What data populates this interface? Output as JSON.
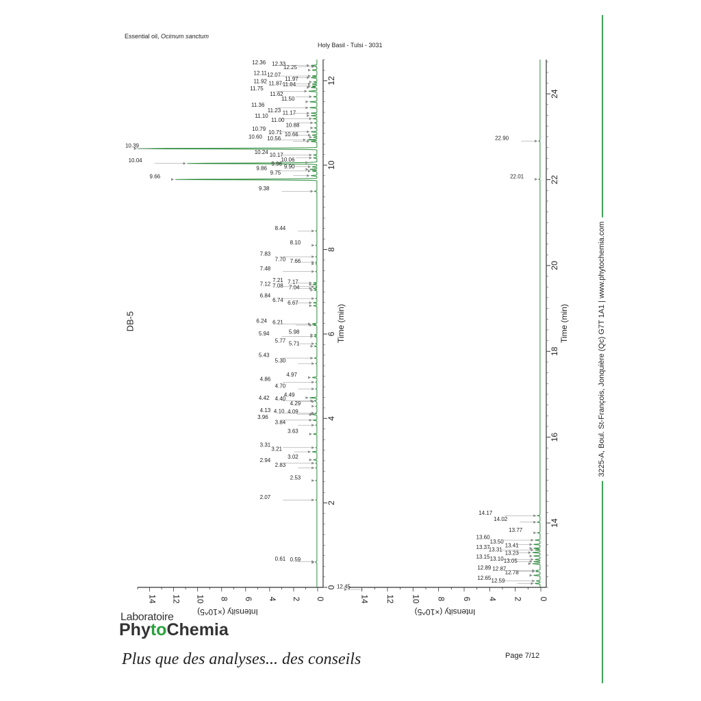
{
  "header": {
    "sample": "Essential oil, ",
    "species": "Ocimum sanctum",
    "title": "Holy Basil - Tulsi - 3031"
  },
  "column_label": "DB-5",
  "footer": {
    "page": "Page 7/12",
    "logo_line1": "Laboratoire",
    "logo_phy": "Phy",
    "logo_to": "to",
    "logo_chemia": "Chemia",
    "tagline": "Plus que des analyses... des conseils",
    "address": "3225-A, Boul. St-François, Jonquière (Qc)  G7T 1A1  |  www.phytochemia.com"
  },
  "colors": {
    "trace": "#2e8b3e",
    "accent": "#3aa655",
    "arrow": "#888888"
  },
  "chart_data": [
    {
      "type": "line",
      "title": "",
      "xlabel": "Time (min)",
      "ylabel": "Intensity (×10^5)",
      "xlim": [
        0,
        12.5
      ],
      "ylim": [
        0,
        15
      ],
      "x_ticks": [
        0,
        2,
        4,
        6,
        8,
        10,
        12
      ],
      "y_ticks": [
        0,
        2,
        4,
        6,
        8,
        10,
        12,
        14
      ],
      "peaks": [
        {
          "rt": 0.59,
          "h": 0.1
        },
        {
          "rt": 0.61,
          "h": 0.1
        },
        {
          "rt": 2.07,
          "h": 0.1
        },
        {
          "rt": 2.53,
          "h": 0.1
        },
        {
          "rt": 2.83,
          "h": 0.1
        },
        {
          "rt": 2.94,
          "h": 0.1
        },
        {
          "rt": 3.02,
          "h": 0.3
        },
        {
          "rt": 3.21,
          "h": 0.4
        },
        {
          "rt": 3.31,
          "h": 0.1
        },
        {
          "rt": 3.63,
          "h": 0.3
        },
        {
          "rt": 3.84,
          "h": 0.1
        },
        {
          "rt": 3.96,
          "h": 0.3
        },
        {
          "rt": 4.09,
          "h": 0.3
        },
        {
          "rt": 4.1,
          "h": 0.2
        },
        {
          "rt": 4.13,
          "h": 0.1
        },
        {
          "rt": 4.29,
          "h": 0.1
        },
        {
          "rt": 4.4,
          "h": 0.1
        },
        {
          "rt": 4.42,
          "h": 0.2
        },
        {
          "rt": 4.49,
          "h": 0.6
        },
        {
          "rt": 4.7,
          "h": 0.1
        },
        {
          "rt": 4.86,
          "h": 0.1
        },
        {
          "rt": 4.97,
          "h": 0.4
        },
        {
          "rt": 5.3,
          "h": 0.1
        },
        {
          "rt": 5.43,
          "h": 0.2
        },
        {
          "rt": 5.71,
          "h": 0.2
        },
        {
          "rt": 5.77,
          "h": 0.1
        },
        {
          "rt": 5.94,
          "h": 0.2
        },
        {
          "rt": 5.98,
          "h": 0.2
        },
        {
          "rt": 6.21,
          "h": 0.3
        },
        {
          "rt": 6.24,
          "h": 0.4
        },
        {
          "rt": 6.67,
          "h": 0.3
        },
        {
          "rt": 6.74,
          "h": 0.3
        },
        {
          "rt": 6.84,
          "h": 0.1
        },
        {
          "rt": 7.04,
          "h": 0.2
        },
        {
          "rt": 7.08,
          "h": 0.3
        },
        {
          "rt": 7.12,
          "h": 0.1
        },
        {
          "rt": 7.17,
          "h": 0.3
        },
        {
          "rt": 7.21,
          "h": 0.3
        },
        {
          "rt": 7.48,
          "h": 0.1
        },
        {
          "rt": 7.66,
          "h": 0.1
        },
        {
          "rt": 7.7,
          "h": 0.1
        },
        {
          "rt": 7.83,
          "h": 0.1
        },
        {
          "rt": 8.1,
          "h": 0.1
        },
        {
          "rt": 8.44,
          "h": 0.1
        },
        {
          "rt": 9.38,
          "h": 0.2
        },
        {
          "rt": 9.66,
          "h": 11.8
        },
        {
          "rt": 9.75,
          "h": 0.5
        },
        {
          "rt": 9.86,
          "h": 0.4
        },
        {
          "rt": 9.9,
          "h": 0.6
        },
        {
          "rt": 9.96,
          "h": 0.4
        },
        {
          "rt": 10.04,
          "h": 10.8
        },
        {
          "rt": 10.06,
          "h": 0.6
        },
        {
          "rt": 10.17,
          "h": 0.3
        },
        {
          "rt": 10.24,
          "h": 0.3
        },
        {
          "rt": 10.39,
          "h": 14.9
        },
        {
          "rt": 10.56,
          "h": 0.5
        },
        {
          "rt": 10.6,
          "h": 0.8
        },
        {
          "rt": 10.66,
          "h": 0.3
        },
        {
          "rt": 10.71,
          "h": 0.4
        },
        {
          "rt": 10.79,
          "h": 0.5
        },
        {
          "rt": 10.88,
          "h": 0.2
        },
        {
          "rt": 11.0,
          "h": 0.2
        },
        {
          "rt": 11.1,
          "h": 0.3
        },
        {
          "rt": 11.17,
          "h": 0.5
        },
        {
          "rt": 11.23,
          "h": 0.5
        },
        {
          "rt": 11.36,
          "h": 0.6
        },
        {
          "rt": 11.5,
          "h": 0.6
        },
        {
          "rt": 11.62,
          "h": 0.3
        },
        {
          "rt": 11.75,
          "h": 0.7
        },
        {
          "rt": 11.84,
          "h": 0.5
        },
        {
          "rt": 11.87,
          "h": 0.4
        },
        {
          "rt": 11.92,
          "h": 0.4
        },
        {
          "rt": 11.97,
          "h": 0.3
        },
        {
          "rt": 12.07,
          "h": 0.5
        },
        {
          "rt": 12.11,
          "h": 0.4
        },
        {
          "rt": 12.25,
          "h": 0.4
        },
        {
          "rt": 12.33,
          "h": 0.1
        },
        {
          "rt": 12.36,
          "h": 0.5
        }
      ]
    },
    {
      "type": "line",
      "title": "",
      "xlabel": "Time (min)",
      "ylabel": "Intensity (×10^5)",
      "xlim": [
        12.5,
        24.8
      ],
      "ylim": [
        0,
        15
      ],
      "x_ticks": [
        14,
        16,
        18,
        20,
        22,
        24
      ],
      "y_ticks": [
        0,
        2,
        4,
        6,
        8,
        10,
        12,
        14
      ],
      "peaks": [
        {
          "rt": 12.45,
          "h": 15.0
        },
        {
          "rt": 12.59,
          "h": 0.4
        },
        {
          "rt": 12.65,
          "h": 0.3
        },
        {
          "rt": 12.78,
          "h": 0.5
        },
        {
          "rt": 12.87,
          "h": 0.3
        },
        {
          "rt": 12.89,
          "h": 0.3
        },
        {
          "rt": 13.05,
          "h": 0.6
        },
        {
          "rt": 13.1,
          "h": 0.5
        },
        {
          "rt": 13.15,
          "h": 0.4
        },
        {
          "rt": 13.23,
          "h": 0.5
        },
        {
          "rt": 13.31,
          "h": 0.6
        },
        {
          "rt": 13.37,
          "h": 0.4
        },
        {
          "rt": 13.41,
          "h": 0.5
        },
        {
          "rt": 13.5,
          "h": 0.5
        },
        {
          "rt": 13.6,
          "h": 0.4
        },
        {
          "rt": 13.77,
          "h": 0.2
        },
        {
          "rt": 14.02,
          "h": 0.2
        },
        {
          "rt": 14.17,
          "h": 0.2
        },
        {
          "rt": 22.01,
          "h": 0.1
        },
        {
          "rt": 22.9,
          "h": 0.1
        }
      ]
    }
  ]
}
